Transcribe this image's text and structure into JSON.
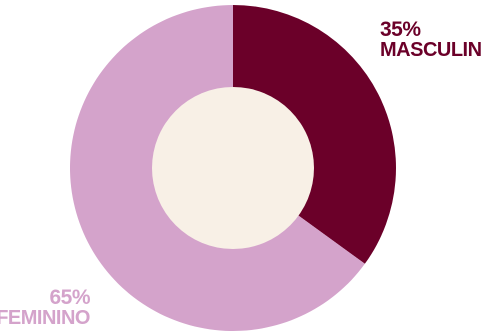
{
  "chart_data": {
    "type": "pie",
    "style": "donut",
    "categories": [
      "MASCULINO",
      "FEMININO"
    ],
    "values": [
      35,
      65
    ],
    "value_labels": [
      "35%",
      "65%"
    ],
    "colors": [
      "#6b0029",
      "#d4a3cb"
    ],
    "hole_color": "#f8f0e6"
  }
}
